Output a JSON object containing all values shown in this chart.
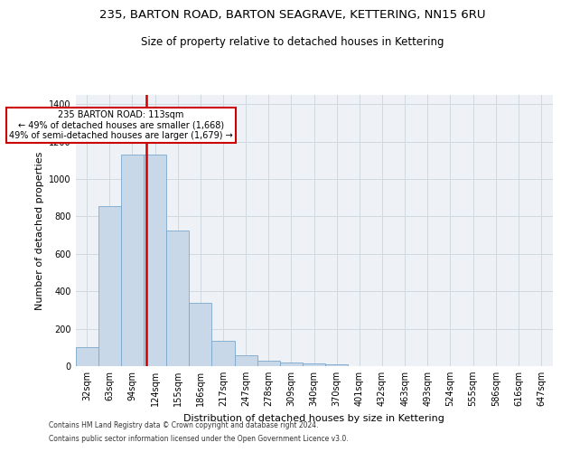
{
  "title": "235, BARTON ROAD, BARTON SEAGRAVE, KETTERING, NN15 6RU",
  "subtitle": "Size of property relative to detached houses in Kettering",
  "xlabel": "Distribution of detached houses by size in Kettering",
  "ylabel": "Number of detached properties",
  "footer_line1": "Contains HM Land Registry data © Crown copyright and database right 2024.",
  "footer_line2": "Contains public sector information licensed under the Open Government Licence v3.0.",
  "categories": [
    "32sqm",
    "63sqm",
    "94sqm",
    "124sqm",
    "155sqm",
    "186sqm",
    "217sqm",
    "247sqm",
    "278sqm",
    "309sqm",
    "340sqm",
    "370sqm",
    "401sqm",
    "432sqm",
    "463sqm",
    "493sqm",
    "524sqm",
    "555sqm",
    "586sqm",
    "616sqm",
    "647sqm"
  ],
  "values": [
    100,
    855,
    1130,
    1130,
    725,
    340,
    135,
    60,
    30,
    20,
    15,
    10,
    0,
    0,
    0,
    0,
    0,
    0,
    0,
    0,
    0
  ],
  "bar_color": "#c8d8e8",
  "bar_edge_color": "#7aa8cc",
  "grid_color": "#d0d8e0",
  "bg_color": "#eef2f7",
  "vline_color": "#cc0000",
  "vline_x": 2.63,
  "annotation_text": "235 BARTON ROAD: 113sqm\n← 49% of detached houses are smaller (1,668)\n49% of semi-detached houses are larger (1,679) →",
  "annotation_box_color": "#cc0000",
  "ylim": [
    0,
    1450
  ],
  "yticks": [
    0,
    200,
    400,
    600,
    800,
    1000,
    1200,
    1400
  ],
  "title_fontsize": 9.5,
  "subtitle_fontsize": 8.5,
  "tick_fontsize": 7,
  "ylabel_fontsize": 8,
  "xlabel_fontsize": 8,
  "footer_fontsize": 5.5,
  "annot_fontsize": 7
}
